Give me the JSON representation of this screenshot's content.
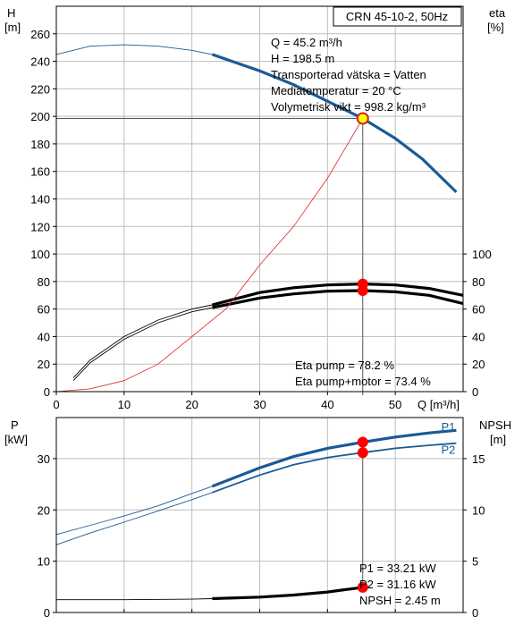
{
  "chart_data": [
    {
      "type": "line",
      "panel": "head-and-efficiency",
      "title_box": "CRN 45-10-2, 50Hz",
      "ylabel_left": "H",
      "yunit_left": "[m]",
      "ylabel_right": "eta",
      "yunit_right": "[%]",
      "xlabel": "Q [m³/h]",
      "xlim": [
        0,
        60
      ],
      "ylim_left": [
        0,
        280
      ],
      "ylim_right": [
        0,
        280
      ],
      "xticks": [
        0,
        10,
        20,
        30,
        40,
        50
      ],
      "yticks_left": [
        0,
        20,
        40,
        60,
        80,
        100,
        120,
        140,
        160,
        180,
        200,
        220,
        240,
        260
      ],
      "yticks_right": [
        0,
        20,
        40,
        60,
        80,
        100
      ],
      "grid": true,
      "info_lines": [
        "Q = 45.2 m³/h",
        "H = 198.5 m",
        "Transporterad vätska = Vatten",
        "Mediatemperatur = 20 °C",
        "Volymetrisk vikt = 998.2 kg/m³"
      ],
      "eta_labels": [
        "Eta pump = 78.2 %",
        "Eta pump+motor = 73.4 %"
      ],
      "series": [
        {
          "color": "#1a5a96",
          "extended": {
            "x": [
              0,
              5,
              10,
              15,
              20,
              23
            ],
            "y": [
              245,
              251,
              252,
              251,
              248,
              245
            ]
          },
          "operating": {
            "x": [
              23,
              30,
              35,
              40,
              45.2,
              50,
              54,
              59
            ],
            "y": [
              245,
              233,
              223,
              211,
              198.5,
              184,
              169,
              145
            ]
          }
        },
        {
          "color": "#000000",
          "extended": {
            "x": [
              2.5,
              5,
              10,
              15,
              20,
              23
            ],
            "y": [
              8,
              21,
              38,
              50,
              58,
              61
            ]
          },
          "operating": {
            "x": [
              23,
              30,
              35,
              40,
              45.2,
              50,
              55,
              60
            ],
            "y": [
              61,
              68,
              71,
              73,
              73.4,
              72.5,
              70,
              64
            ]
          }
        },
        {
          "color": "#000000",
          "extended": {
            "x": [
              2.5,
              5,
              10,
              15,
              20,
              23
            ],
            "y": [
              10,
              23,
              40,
              52,
              60,
              63
            ]
          },
          "operating": {
            "x": [
              23,
              30,
              35,
              40,
              45.2,
              50,
              55,
              60
            ],
            "y": [
              63,
              72,
              75.5,
              77.5,
              78.2,
              77.5,
              75,
              70
            ]
          }
        },
        {
          "color": "#e02020",
          "extended": {
            "x": [
              0,
              5,
              10,
              15,
              20,
              25,
              30,
              35,
              40,
              45.2
            ],
            "y": [
              0,
              2,
              8,
              20,
              40,
              60,
              92,
              120,
              155,
              198.5
            ]
          },
          "operating": {
            "x": [],
            "y": []
          }
        }
      ],
      "markers": [
        {
          "x": 45.2,
          "y": 198.5,
          "color": "#ffff00",
          "stroke": "#d02020"
        },
        {
          "x": 45.2,
          "y": 78.2,
          "color": "#ff0000",
          "stroke": "#ff0000"
        },
        {
          "x": 45.2,
          "y": 73.4,
          "color": "#ff0000",
          "stroke": "#ff0000"
        }
      ]
    },
    {
      "type": "line",
      "panel": "power-and-npsh",
      "ylabel_left": "P",
      "yunit_left": "[kW]",
      "ylabel_right": "NPSH",
      "yunit_right": "[m]",
      "xlim": [
        0,
        60
      ],
      "ylim_left": [
        0,
        38
      ],
      "ylim_right": [
        0,
        19
      ],
      "yticks_left": [
        0,
        10,
        20,
        30
      ],
      "yticks_right": [
        0,
        5,
        10,
        15
      ],
      "grid": true,
      "series_labels": [
        {
          "text": "P1",
          "x": 59,
          "y": 36.3
        },
        {
          "text": "P2",
          "x": 59,
          "y": 31.8
        }
      ],
      "info_lines": [
        "P1 = 33.21 kW",
        "P2 = 31.16 kW",
        "NPSH = 2.45 m"
      ],
      "series": [
        {
          "color": "#1a5a96",
          "extended": {
            "x": [
              0,
              5,
              10,
              15,
              20,
              23
            ],
            "y": [
              15.2,
              17,
              18.8,
              20.8,
              23.2,
              24.6
            ]
          },
          "operating": {
            "x": [
              23,
              30,
              35,
              40,
              45.2,
              50,
              55,
              59
            ],
            "y": [
              24.6,
              28.2,
              30.4,
              32,
              33.21,
              34.2,
              35,
              35.5
            ]
          }
        },
        {
          "color": "#1a5a96",
          "extended": {
            "x": [
              0,
              5,
              10,
              15,
              20,
              23
            ],
            "y": [
              13.2,
              15.5,
              17.6,
              19.8,
              22,
              23.4
            ]
          },
          "operating": {
            "x": [
              23,
              30,
              35,
              40,
              45.2,
              50,
              55,
              59
            ],
            "y": [
              23.4,
              26.8,
              28.8,
              30.2,
              31.16,
              32,
              32.6,
              33
            ]
          }
        },
        {
          "color": "#000000",
          "scale": "right",
          "extended": {
            "x": [
              0,
              10,
              20,
              23
            ],
            "y": [
              1.25,
              1.25,
              1.3,
              1.35
            ]
          },
          "operating": {
            "x": [
              23,
              30,
              35,
              40,
              45.2
            ],
            "y": [
              1.35,
              1.5,
              1.7,
              2.0,
              2.45
            ]
          }
        }
      ],
      "markers": [
        {
          "x": 45.2,
          "y": 33.21,
          "color": "#ff0000",
          "stroke": "#ff0000"
        },
        {
          "x": 45.2,
          "y": 31.16,
          "color": "#ff0000",
          "stroke": "#ff0000"
        },
        {
          "x": 45.2,
          "y": 2.45,
          "scale": "right",
          "color": "#ff0000",
          "stroke": "#ff0000"
        }
      ]
    }
  ]
}
